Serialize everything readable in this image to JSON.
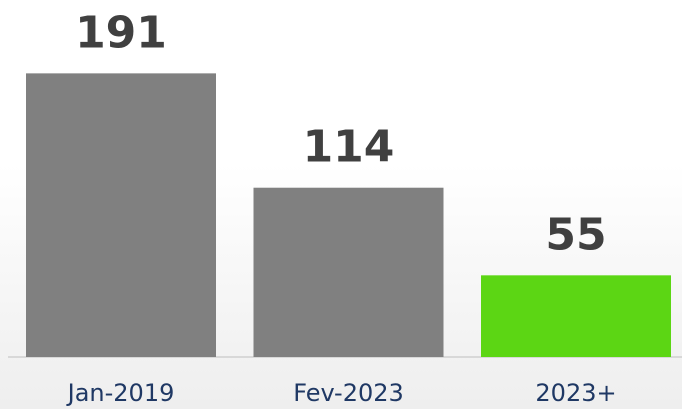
{
  "chart_data": {
    "type": "bar",
    "categories": [
      "Jan-2019",
      "Fev-2023",
      "2023+"
    ],
    "values": [
      191,
      114,
      55
    ],
    "colors": [
      "#808080",
      "#808080",
      "#5cd614"
    ]
  }
}
